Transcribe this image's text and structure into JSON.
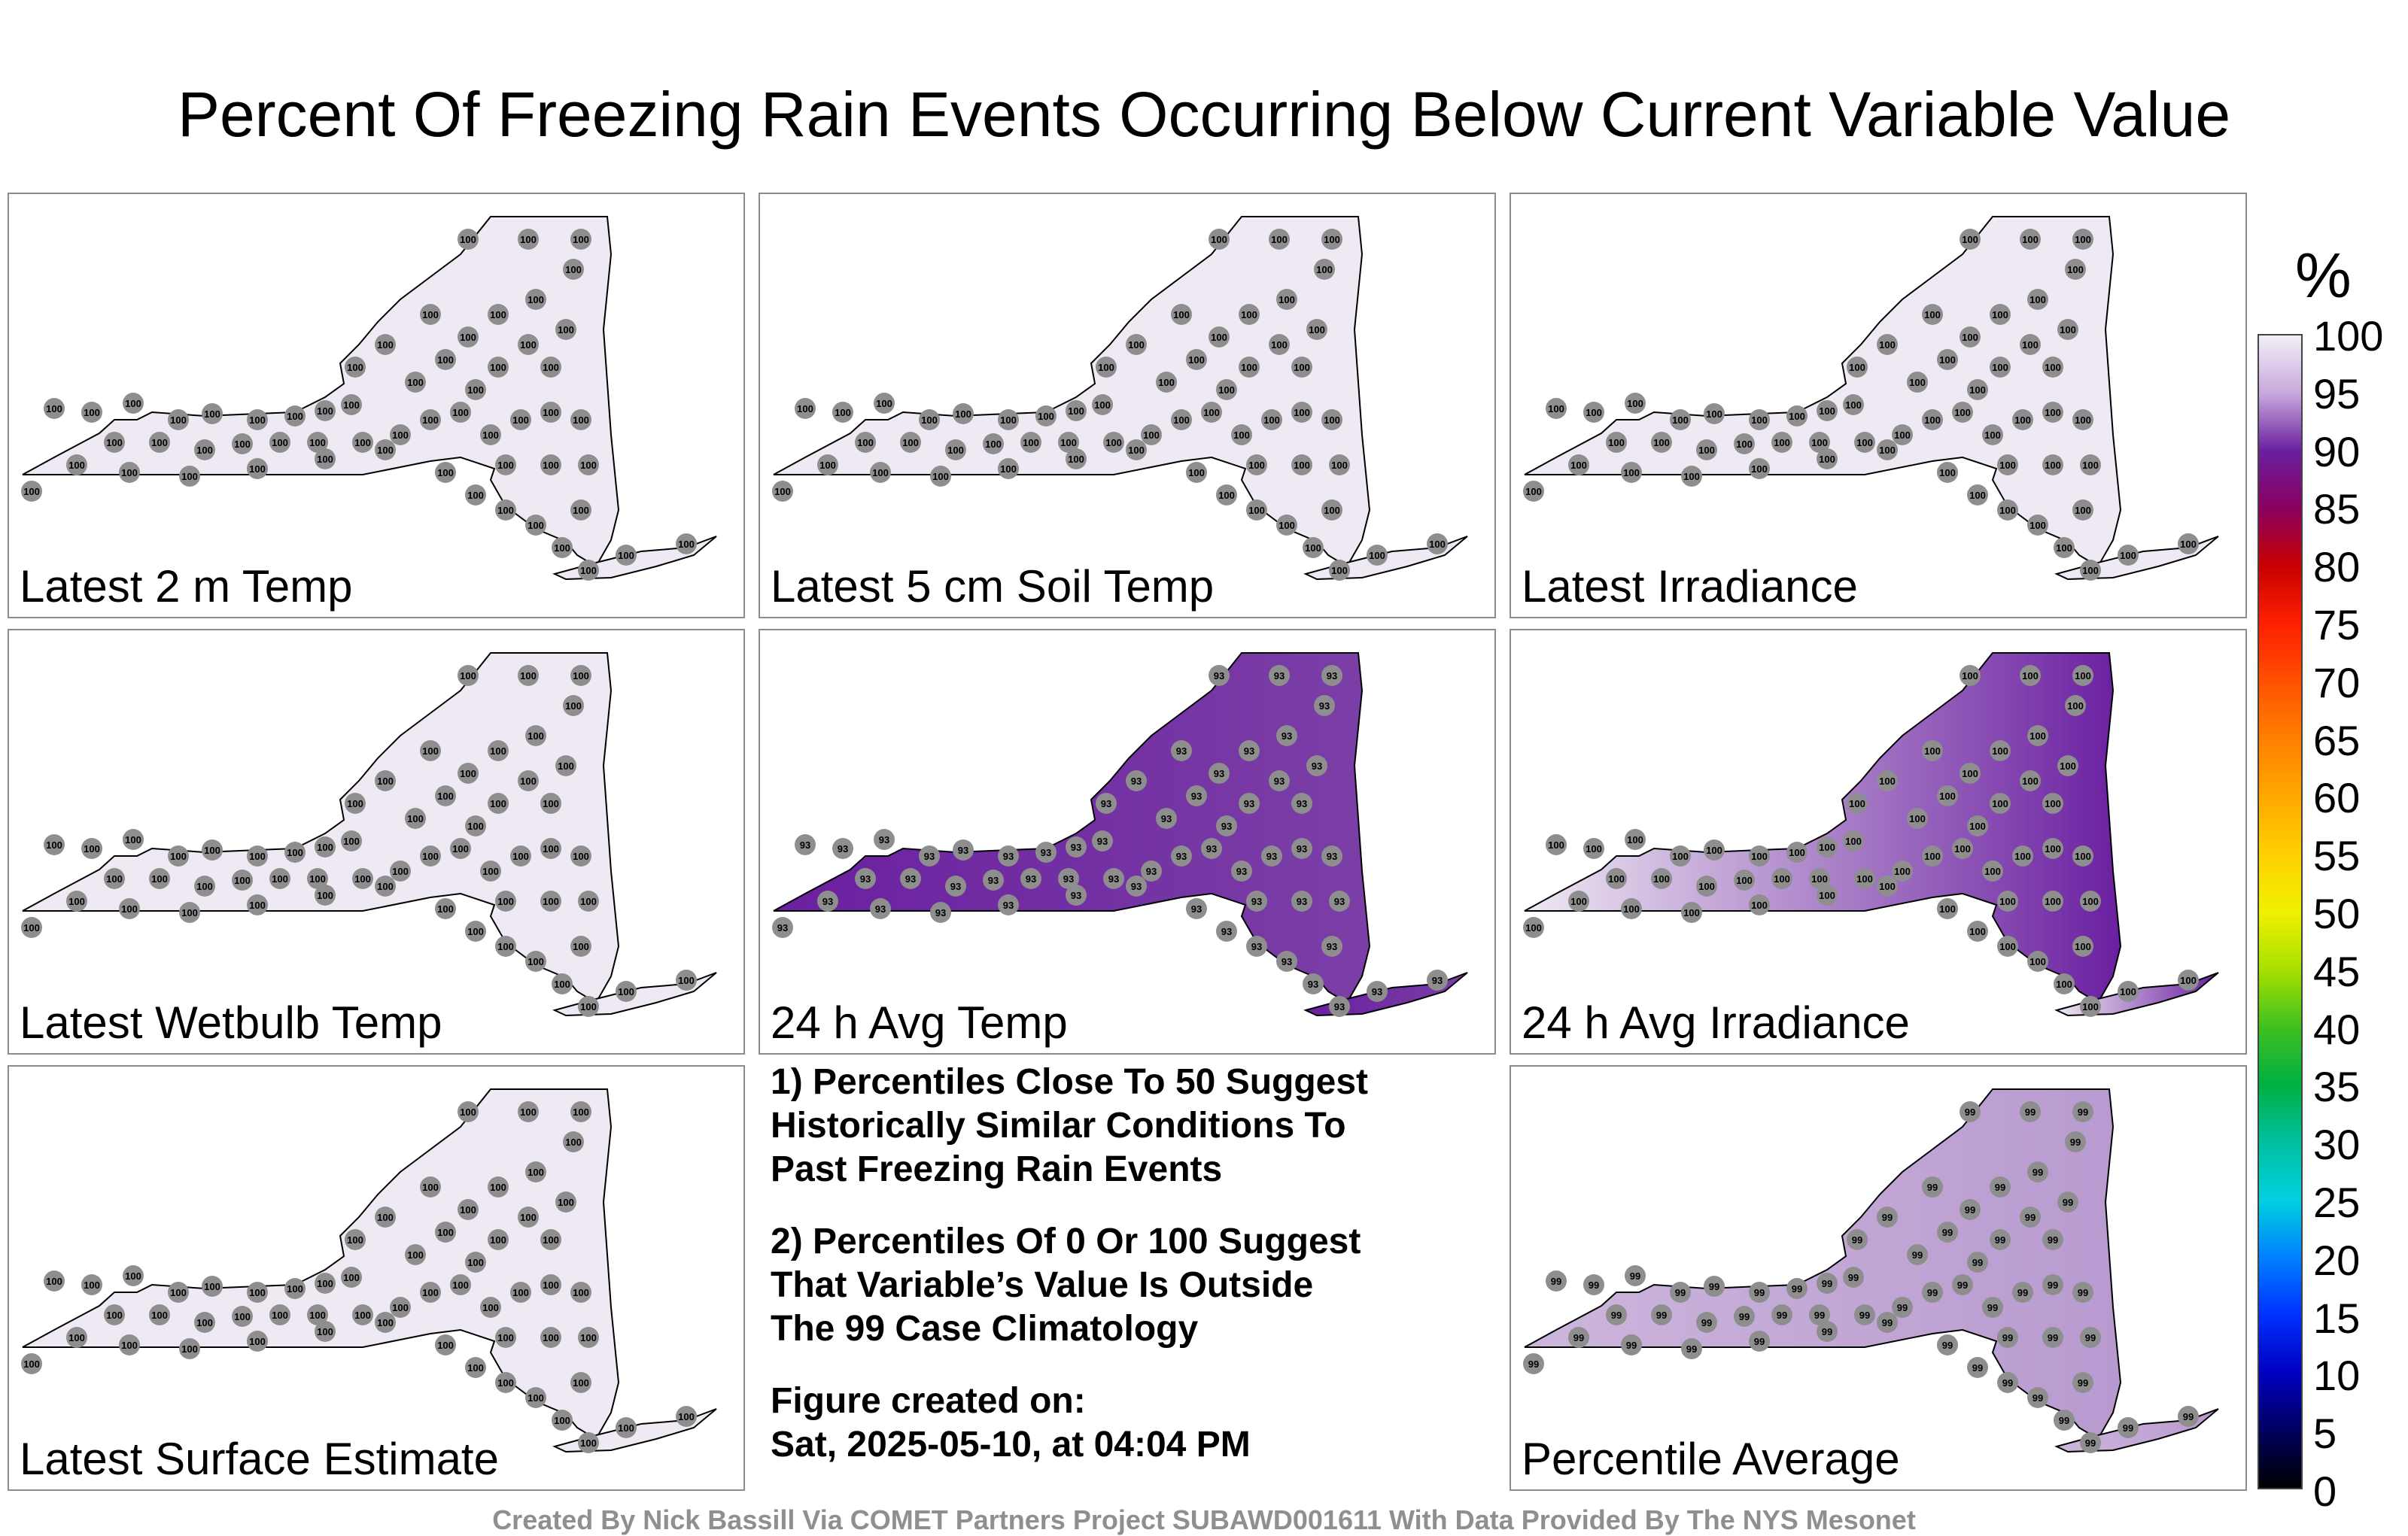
{
  "title": "Percent Of Freezing Rain Events Occurring Below Current Variable Value",
  "panels": [
    {
      "label": "Latest 2 m Temp",
      "fill": "#efe9f3",
      "value": "100"
    },
    {
      "label": "Latest 5 cm Soil Temp",
      "fill": "#efe9f3",
      "value": "100"
    },
    {
      "label": "Latest Irradiance",
      "fill": "#efe9f3",
      "value": "100"
    },
    {
      "label": "Latest Wetbulb Temp",
      "fill": "#efe9f3",
      "value": "100"
    },
    {
      "label": "24 h Avg Temp",
      "fill": "#7b3fa6",
      "value": "93"
    },
    {
      "label": "24 h Avg Irradiance",
      "fill": "#e9def0",
      "value": "100"
    },
    {
      "label": "Latest Surface Estimate",
      "fill": "#efe9f3",
      "value": "100"
    },
    {
      "label": "Percentile Average",
      "fill": "#cdb6dc",
      "value": "99"
    }
  ],
  "notes": {
    "note1": "1) Percentiles Close To 50 Suggest\nHistorically Similar Conditions To\nPast Freezing Rain Events",
    "note2": "2) Percentiles Of 0 Or 100 Suggest\nThat Variable’s Value Is Outside\nThe 99 Case Climatology",
    "created": "Figure created on:\nSat, 2025-05-10, at 04:04 PM"
  },
  "legend": {
    "unit": "%",
    "ticks": [
      "100",
      "95",
      "90",
      "85",
      "80",
      "75",
      "70",
      "65",
      "60",
      "55",
      "50",
      "45",
      "40",
      "35",
      "30",
      "25",
      "20",
      "15",
      "10",
      "5",
      "0"
    ],
    "colors": [
      "#f3eff7",
      "#c7a9dc",
      "#6a1fa0",
      "#8a0060",
      "#c80000",
      "#ff2000",
      "#ff5000",
      "#ff8000",
      "#ffa800",
      "#ffd000",
      "#f0f000",
      "#a8e000",
      "#40c020",
      "#00b040",
      "#00c0a0",
      "#00d0e0",
      "#0080ff",
      "#0030ff",
      "#0000c0",
      "#000060",
      "#000000"
    ]
  },
  "footer": "Created By Nick Bassill Via COMET Partners Project SUBAWD001611 With Data Provided By The NYS Mesonet"
}
